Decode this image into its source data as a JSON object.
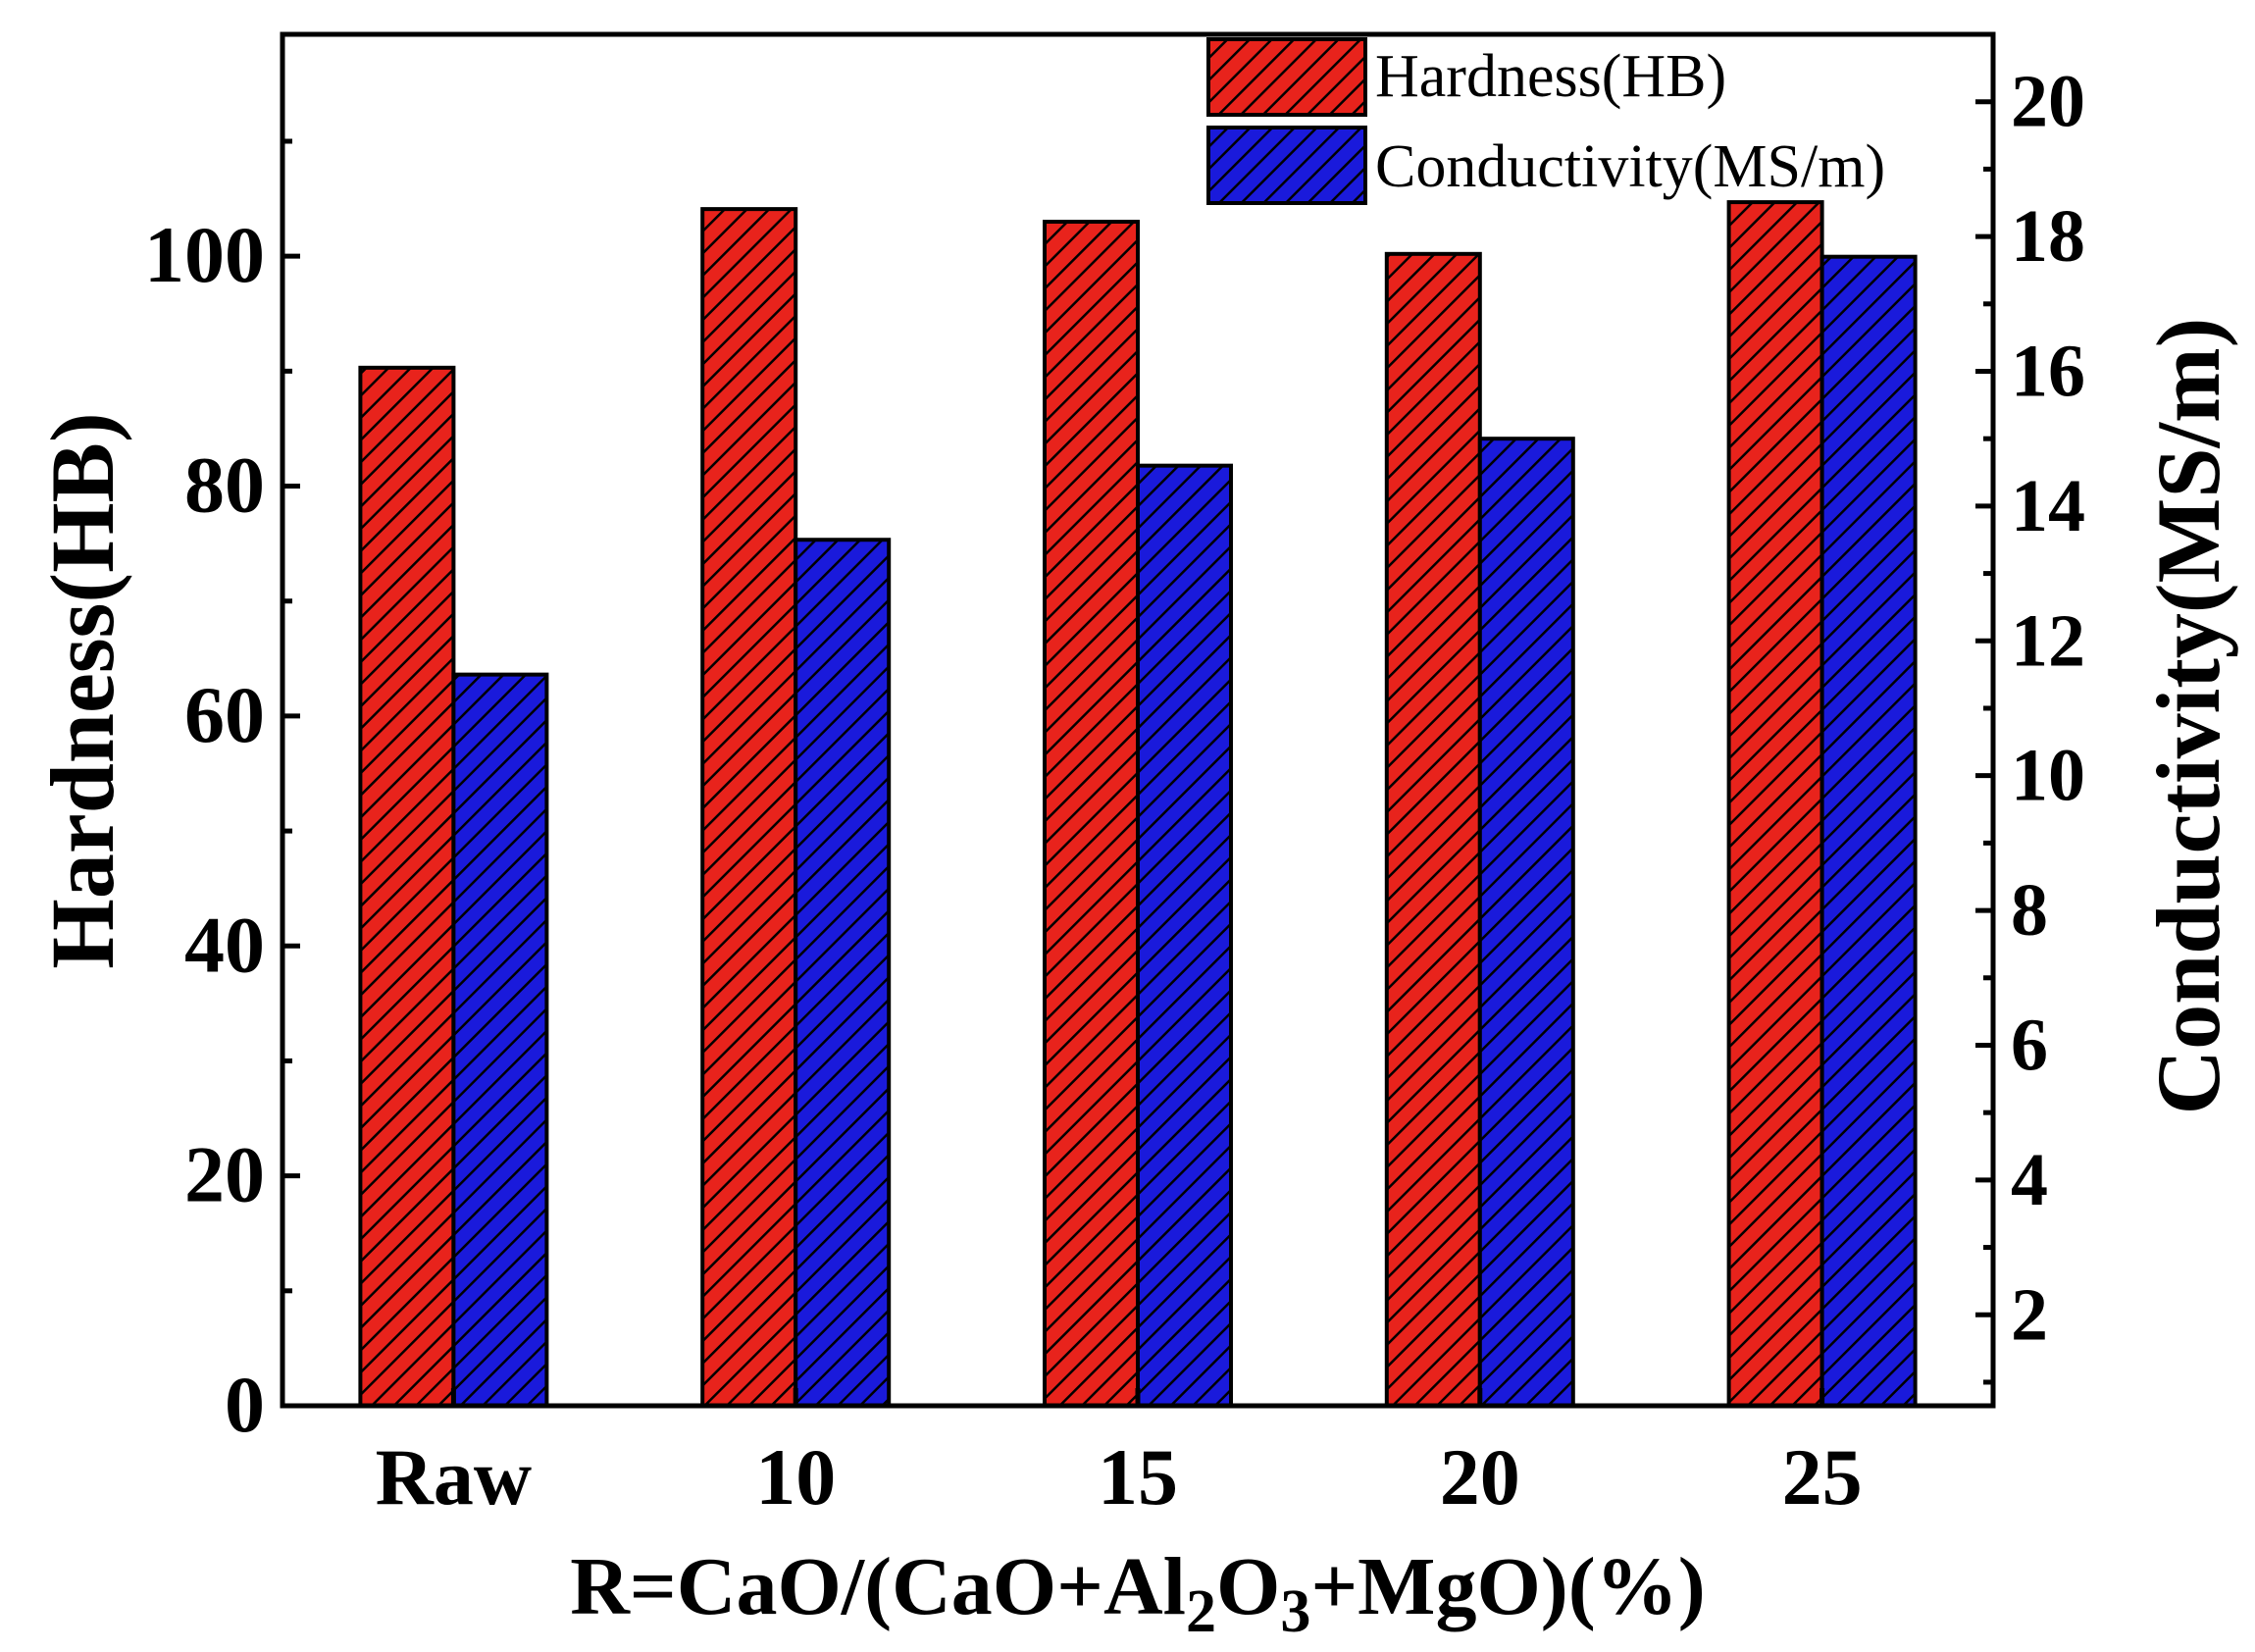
{
  "chart_data": {
    "type": "bar",
    "categories": [
      "Raw",
      "10",
      "15",
      "20",
      "25"
    ],
    "series": [
      {
        "name": "Hardness(HB)",
        "axis": "left",
        "color": "#e8231c",
        "values": [
          90.3,
          104.1,
          103.0,
          100.2,
          104.7
        ]
      },
      {
        "name": "Conductivity(MS/m)",
        "axis": "right",
        "color": "#1a1adb",
        "values": [
          11.5,
          13.5,
          14.6,
          15.0,
          17.7
        ]
      }
    ],
    "xlabel": "R=CaO/(CaO+Al2O3+MgO)(%)",
    "xlabel_parts": {
      "pre": "R=CaO/(CaO+Al",
      "sub1": "2",
      "mid": "O",
      "sub2": "3",
      "post": "+MgO)(%)"
    },
    "ylabel": "Hardness(HB)",
    "y2label": "Conductivity(MS/m)",
    "ylim": [
      0,
      119.3
    ],
    "y2lim": [
      0.65,
      21.0
    ],
    "yticks": [
      "0",
      "20",
      "40",
      "60",
      "80",
      "100"
    ],
    "y2ticks": [
      "2",
      "4",
      "6",
      "8",
      "10",
      "12",
      "14",
      "16",
      "18",
      "20"
    ],
    "legend": {
      "position": "top-right",
      "entries": [
        "Hardness(HB)",
        "Conductivity(MS/m)"
      ]
    },
    "grid": false
  }
}
